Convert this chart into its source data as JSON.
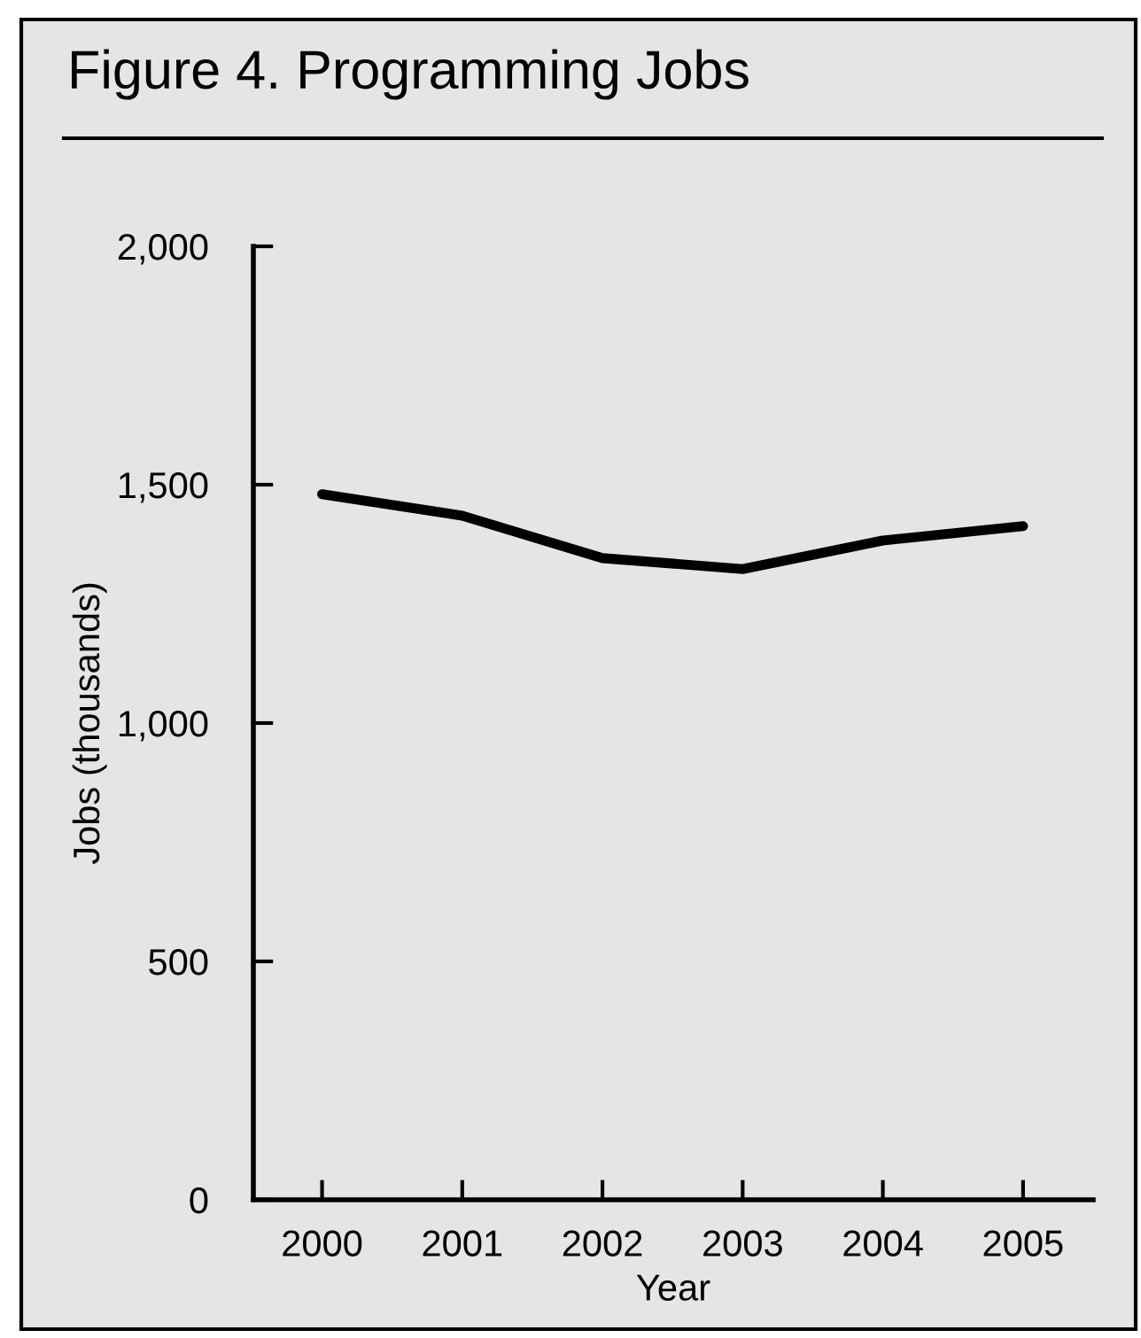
{
  "chart_data": {
    "type": "line",
    "title": "Figure 4. Programming Jobs",
    "xlabel": "Year",
    "ylabel": "Jobs (thousands)",
    "categories": [
      "2000",
      "2001",
      "2002",
      "2003",
      "2004",
      "2005"
    ],
    "series": [
      {
        "color": "#000000",
        "values": [
          1480,
          1435,
          1346,
          1323,
          1383,
          1413
        ]
      }
    ],
    "ylim": [
      0,
      2000
    ],
    "yticks": [
      {
        "value": 0,
        "label": "0"
      },
      {
        "value": 500,
        "label": "500"
      },
      {
        "value": 1000,
        "label": "1,000"
      },
      {
        "value": 1500,
        "label": "1,500"
      },
      {
        "value": 2000,
        "label": "2,000"
      }
    ],
    "grid": false,
    "legend": false,
    "marker": "none",
    "line_style": "solid"
  }
}
